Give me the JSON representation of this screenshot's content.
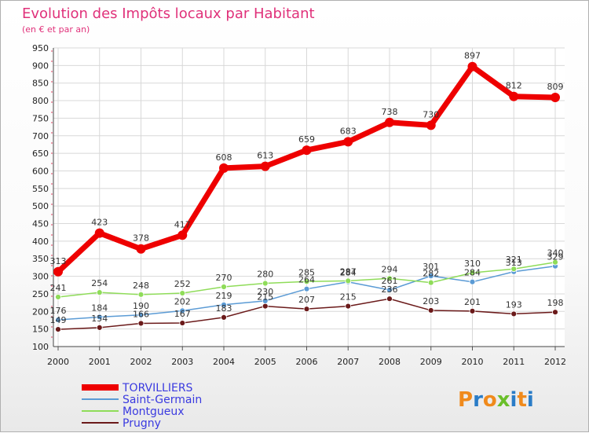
{
  "chart_data": {
    "type": "line",
    "title": "Evolution des Impôts locaux par Habitant",
    "subtitle": "(en € et par an)",
    "x": [
      "2000",
      "2001",
      "2002",
      "2003",
      "2004",
      "2005",
      "2006",
      "2007",
      "2008",
      "2009",
      "2010",
      "2011",
      "2012"
    ],
    "ylim": [
      100,
      950
    ],
    "yticks": [
      100,
      150,
      200,
      250,
      300,
      350,
      400,
      450,
      500,
      550,
      600,
      650,
      700,
      750,
      800,
      850,
      900,
      950
    ],
    "grid": true,
    "legend_position": "bottom-left",
    "series": [
      {
        "name": "TORVILLIERS",
        "color": "#ee0000",
        "values": [
          313,
          423,
          378,
          417,
          608,
          613,
          659,
          683,
          738,
          730,
          897,
          812,
          809
        ]
      },
      {
        "name": "Saint-Germain",
        "color": "#5b9bd5",
        "values": [
          176,
          184,
          190,
          202,
          219,
          230,
          264,
          284,
          261,
          301,
          284,
          313,
          329
        ]
      },
      {
        "name": "Montgueux",
        "color": "#8fdc59",
        "values": [
          241,
          254,
          248,
          252,
          270,
          280,
          285,
          287,
          294,
          282,
          310,
          321,
          340
        ]
      },
      {
        "name": "Prugny",
        "color": "#6b1a1a",
        "values": [
          149,
          154,
          166,
          167,
          183,
          215,
          207,
          215,
          236,
          203,
          201,
          193,
          198
        ]
      }
    ]
  },
  "brand": {
    "text": "Proxiti",
    "letters": [
      "P",
      "r",
      "o",
      "x",
      "i",
      "t",
      "i"
    ]
  }
}
